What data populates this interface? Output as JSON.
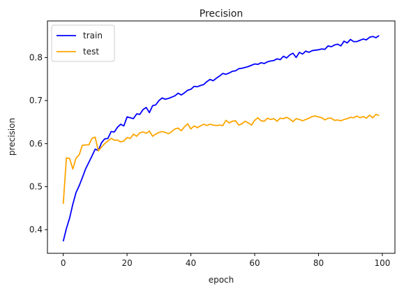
{
  "chart_data": {
    "type": "line",
    "title": "Precision",
    "xlabel": "epoch",
    "ylabel": "precision",
    "xlim": [
      -4.95,
      103.95
    ],
    "ylim": [
      0.345,
      0.885
    ],
    "xticks": [
      0,
      20,
      40,
      60,
      80,
      100
    ],
    "yticks": [
      0.4,
      0.5,
      0.6,
      0.7,
      0.8
    ],
    "ytick_labels": [
      "0.4",
      "0.5",
      "0.6",
      "0.7",
      "0.8"
    ],
    "grid": false,
    "legend_position": "top-left",
    "x": [
      0,
      1,
      2,
      3,
      4,
      5,
      6,
      7,
      8,
      9,
      10,
      11,
      12,
      13,
      14,
      15,
      16,
      17,
      18,
      19,
      20,
      21,
      22,
      23,
      24,
      25,
      26,
      27,
      28,
      29,
      30,
      31,
      32,
      33,
      34,
      35,
      36,
      37,
      38,
      39,
      40,
      41,
      42,
      43,
      44,
      45,
      46,
      47,
      48,
      49,
      50,
      51,
      52,
      53,
      54,
      55,
      56,
      57,
      58,
      59,
      60,
      61,
      62,
      63,
      64,
      65,
      66,
      67,
      68,
      69,
      70,
      71,
      72,
      73,
      74,
      75,
      76,
      77,
      78,
      79,
      80,
      81,
      82,
      83,
      84,
      85,
      86,
      87,
      88,
      89,
      90,
      91,
      92,
      93,
      94,
      95,
      96,
      97,
      98,
      99
    ],
    "series": [
      {
        "name": "train",
        "color": "#0000ff",
        "values": [
          0.373,
          0.403,
          0.427,
          0.459,
          0.486,
          0.502,
          0.521,
          0.541,
          0.556,
          0.571,
          0.587,
          0.584,
          0.602,
          0.611,
          0.612,
          0.628,
          0.627,
          0.638,
          0.645,
          0.641,
          0.662,
          0.66,
          0.658,
          0.669,
          0.668,
          0.679,
          0.684,
          0.672,
          0.688,
          0.69,
          0.7,
          0.706,
          0.703,
          0.705,
          0.708,
          0.711,
          0.717,
          0.713,
          0.718,
          0.724,
          0.726,
          0.733,
          0.732,
          0.735,
          0.737,
          0.744,
          0.749,
          0.746,
          0.752,
          0.757,
          0.763,
          0.761,
          0.764,
          0.768,
          0.769,
          0.774,
          0.775,
          0.777,
          0.779,
          0.782,
          0.785,
          0.784,
          0.788,
          0.786,
          0.79,
          0.792,
          0.793,
          0.797,
          0.795,
          0.803,
          0.799,
          0.806,
          0.81,
          0.8,
          0.812,
          0.808,
          0.815,
          0.812,
          0.816,
          0.817,
          0.818,
          0.82,
          0.819,
          0.827,
          0.825,
          0.829,
          0.831,
          0.827,
          0.838,
          0.834,
          0.842,
          0.837,
          0.837,
          0.84,
          0.843,
          0.841,
          0.847,
          0.849,
          0.846,
          0.851
        ]
      },
      {
        "name": "test",
        "color": "#ffa500",
        "values": [
          0.46,
          0.567,
          0.565,
          0.541,
          0.566,
          0.574,
          0.596,
          0.597,
          0.597,
          0.612,
          0.615,
          0.583,
          0.592,
          0.6,
          0.606,
          0.612,
          0.608,
          0.608,
          0.604,
          0.606,
          0.614,
          0.612,
          0.622,
          0.617,
          0.625,
          0.627,
          0.624,
          0.629,
          0.617,
          0.622,
          0.626,
          0.628,
          0.626,
          0.623,
          0.628,
          0.634,
          0.636,
          0.63,
          0.639,
          0.646,
          0.634,
          0.641,
          0.637,
          0.641,
          0.645,
          0.642,
          0.645,
          0.643,
          0.642,
          0.643,
          0.642,
          0.654,
          0.648,
          0.652,
          0.653,
          0.643,
          0.646,
          0.652,
          0.648,
          0.643,
          0.654,
          0.66,
          0.653,
          0.652,
          0.659,
          0.656,
          0.658,
          0.652,
          0.659,
          0.658,
          0.661,
          0.657,
          0.651,
          0.658,
          0.656,
          0.653,
          0.656,
          0.659,
          0.663,
          0.664,
          0.662,
          0.66,
          0.655,
          0.659,
          0.659,
          0.654,
          0.655,
          0.653,
          0.656,
          0.658,
          0.661,
          0.66,
          0.664,
          0.66,
          0.663,
          0.659,
          0.666,
          0.66,
          0.668,
          0.665
        ]
      }
    ]
  }
}
